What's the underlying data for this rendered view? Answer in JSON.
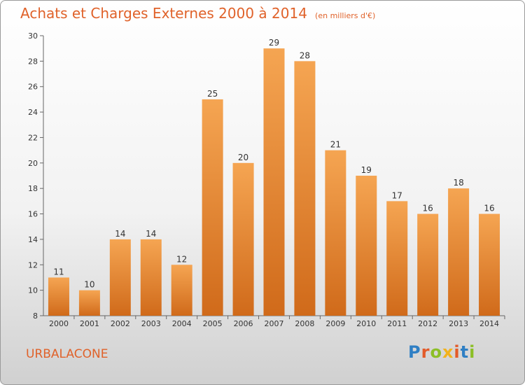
{
  "header": {
    "title": "Achats et Charges Externes 2000 à 2014",
    "unit": "(en milliers d'€)"
  },
  "footer": {
    "place": "URBALACONE",
    "logo": "Proxiti"
  },
  "colors": {
    "bar": "#f09a3e",
    "bar_dark": "#d2701f",
    "text_accent": "#e0622a"
  },
  "chart_data": {
    "type": "bar",
    "title": "Achats et Charges Externes 2000 à 2014",
    "subtitle": "(en milliers d'€)",
    "categories": [
      "2000",
      "2001",
      "2002",
      "2003",
      "2004",
      "2005",
      "2006",
      "2007",
      "2008",
      "2009",
      "2010",
      "2011",
      "2012",
      "2013",
      "2014"
    ],
    "values": [
      11,
      10,
      14,
      14,
      12,
      25,
      20,
      29,
      28,
      21,
      19,
      17,
      16,
      18,
      16
    ],
    "ylim": [
      8,
      30
    ],
    "yticks": [
      8,
      10,
      12,
      14,
      16,
      18,
      20,
      22,
      24,
      26,
      28,
      30
    ],
    "grid": false,
    "legend": "none"
  }
}
